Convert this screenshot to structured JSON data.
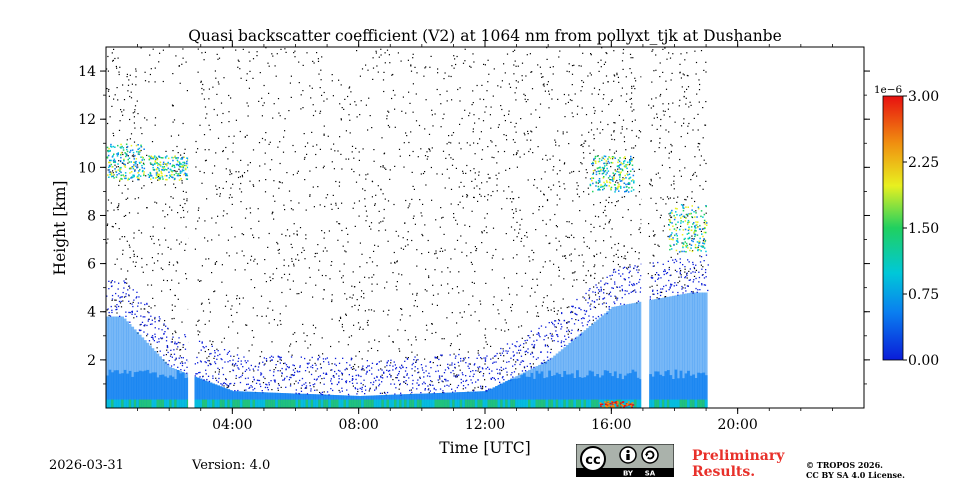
{
  "chart_data": {
    "type": "heatmap",
    "title": "Quasi backscatter coefficient (V2) at 1064 nm from pollyxt_tjk at Dushanbe",
    "xlabel": "Time [UTC]",
    "ylabel": "Height [km]",
    "xlim_hours": [
      0,
      24
    ],
    "ylim_km": [
      0,
      15
    ],
    "x_ticks": [
      {
        "hour": 4,
        "label": "04:00"
      },
      {
        "hour": 8,
        "label": "08:00"
      },
      {
        "hour": 12,
        "label": "12:00"
      },
      {
        "hour": 16,
        "label": "16:00"
      },
      {
        "hour": 20,
        "label": "20:00"
      }
    ],
    "y_ticks": [
      {
        "km": 2,
        "label": "2"
      },
      {
        "km": 4,
        "label": "4"
      },
      {
        "km": 6,
        "label": "6"
      },
      {
        "km": 8,
        "label": "8"
      },
      {
        "km": 10,
        "label": "10"
      },
      {
        "km": 12,
        "label": "12"
      },
      {
        "km": 14,
        "label": "14"
      }
    ],
    "colorbar": {
      "min": 0.0,
      "max": 3e-06,
      "scale_label": "1e−6",
      "ticks": [
        {
          "value": 0.0,
          "label": "0.00"
        },
        {
          "value": 0.75,
          "label": "0.75"
        },
        {
          "value": 1.5,
          "label": "1.50"
        },
        {
          "value": 2.25,
          "label": "2.25"
        },
        {
          "value": 3.0,
          "label": "3.00"
        }
      ],
      "colors": [
        "#0a1cd8",
        "#0a7ef0",
        "#00c8d8",
        "#20d060",
        "#e8f020",
        "#f09010",
        "#e81010"
      ]
    },
    "data_gaps_hours": [
      [
        2.6,
        2.8
      ],
      [
        16.95,
        17.15
      ]
    ],
    "data_end_hour": 19.0,
    "profile_summary": [
      {
        "hour": 0.5,
        "boundary_layer_top_km": 3.8,
        "cloud_km": [
          9.5,
          11.0
        ]
      },
      {
        "hour": 2.0,
        "boundary_layer_top_km": 1.7,
        "cloud_km": [
          9.5,
          10.5
        ]
      },
      {
        "hour": 4.0,
        "boundary_layer_top_km": 0.7,
        "cloud_km": []
      },
      {
        "hour": 8.0,
        "boundary_layer_top_km": 0.5,
        "cloud_km": []
      },
      {
        "hour": 12.0,
        "boundary_layer_top_km": 0.7,
        "cloud_km": []
      },
      {
        "hour": 14.0,
        "boundary_layer_top_km": 2.0,
        "cloud_km": []
      },
      {
        "hour": 16.0,
        "boundary_layer_top_km": 4.2,
        "cloud_km": [
          9.0,
          10.5
        ]
      },
      {
        "hour": 18.5,
        "boundary_layer_top_km": 4.8,
        "cloud_km": [
          6.5,
          8.5
        ]
      }
    ]
  },
  "footer": {
    "date": "2026-03-31",
    "version": "Version: 4.0",
    "preliminary_line1": "Preliminary",
    "preliminary_line2": "Results.",
    "copyright_line1": "© TROPOS 2026.",
    "copyright_line2": "CC BY SA 4.0 License.",
    "cc_labels": [
      "BY",
      "SA"
    ]
  }
}
